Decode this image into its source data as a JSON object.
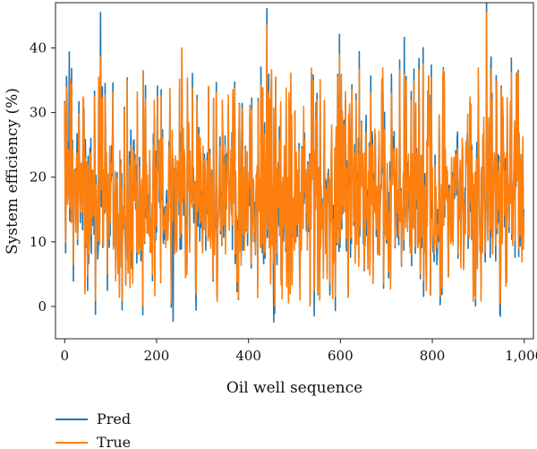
{
  "chart_data": {
    "type": "line",
    "xlabel": "Oil well sequence",
    "ylabel": "System efficiency (%)",
    "xlim": [
      -20,
      1020
    ],
    "ylim": [
      -5,
      47
    ],
    "xticks": [
      0,
      200,
      400,
      600,
      800,
      1000
    ],
    "xtick_labels": [
      "0",
      "200",
      "400",
      "600",
      "800",
      "1,000"
    ],
    "yticks": [
      0,
      10,
      20,
      30,
      40
    ],
    "ytick_labels": [
      "0",
      "10",
      "20",
      "30",
      "40"
    ],
    "grid": false,
    "legend": {
      "placement": "bottom-left",
      "entries": [
        "Pred",
        "True"
      ]
    },
    "n_points": 1000,
    "series": [
      {
        "name": "Pred",
        "color": "#1f77b4",
        "summary": {
          "min": -2.4,
          "max": 45.5,
          "typical_low": 8,
          "typical_high": 25
        },
        "peaks": [
          [
            10,
            39.4
          ],
          [
            78,
            45.5
          ],
          [
            455,
            -2.4
          ],
          [
            598,
            42.1
          ],
          [
            236,
            -2.3
          ],
          [
            900,
            34.0
          ]
        ]
      },
      {
        "name": "True",
        "color": "#ff7f0e",
        "summary": {
          "min": 0,
          "max": 45.5,
          "typical_low": 8,
          "typical_high": 25
        },
        "peaks": [
          [
            78,
            38.7
          ],
          [
            440,
            43.5
          ],
          [
            598,
            39.0
          ],
          [
            918,
            45.5
          ],
          [
            255,
            40.0
          ],
          [
            780,
            37.5
          ]
        ]
      }
    ]
  }
}
